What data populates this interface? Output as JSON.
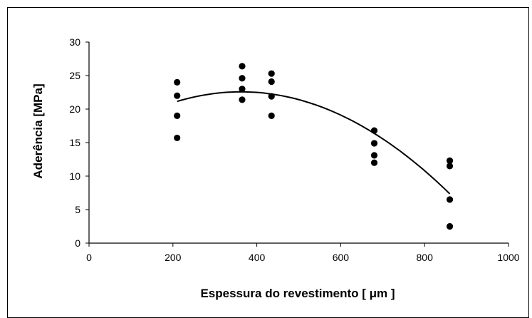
{
  "chart_data": {
    "type": "scatter",
    "title": "",
    "xlabel": "Espessura do revestimento  [ μm ]",
    "ylabel": "Aderência [MPa]",
    "xlim": [
      0,
      1000
    ],
    "ylim": [
      0,
      30
    ],
    "x_ticks": [
      0,
      200,
      400,
      600,
      800,
      1000
    ],
    "y_ticks": [
      0,
      5,
      10,
      15,
      20,
      25,
      30
    ],
    "x_tick_labels": [
      "0",
      "200",
      "400",
      "600",
      "800",
      "1000"
    ],
    "y_tick_labels": [
      "0",
      "5",
      "10",
      "15",
      "20",
      "25",
      "30"
    ],
    "grid": false,
    "legend": "none",
    "points": [
      {
        "x": 210,
        "y": 24.0
      },
      {
        "x": 210,
        "y": 22.0
      },
      {
        "x": 210,
        "y": 19.0
      },
      {
        "x": 210,
        "y": 15.7
      },
      {
        "x": 365,
        "y": 26.4
      },
      {
        "x": 365,
        "y": 24.6
      },
      {
        "x": 365,
        "y": 23.0
      },
      {
        "x": 365,
        "y": 21.4
      },
      {
        "x": 435,
        "y": 25.3
      },
      {
        "x": 435,
        "y": 24.1
      },
      {
        "x": 435,
        "y": 21.9
      },
      {
        "x": 435,
        "y": 19.0
      },
      {
        "x": 680,
        "y": 16.8
      },
      {
        "x": 680,
        "y": 14.9
      },
      {
        "x": 680,
        "y": 13.1
      },
      {
        "x": 680,
        "y": 12.0
      },
      {
        "x": 860,
        "y": 12.3
      },
      {
        "x": 860,
        "y": 11.5
      },
      {
        "x": 860,
        "y": 6.5
      },
      {
        "x": 860,
        "y": 2.5
      }
    ],
    "trendline": {
      "type": "polynomial-2",
      "points": [
        {
          "x": 210,
          "y": 21.2
        },
        {
          "x": 365,
          "y": 22.5
        },
        {
          "x": 435,
          "y": 22.2
        },
        {
          "x": 680,
          "y": 16.5
        },
        {
          "x": 860,
          "y": 7.3
        }
      ]
    },
    "colors": {
      "points": "#000000",
      "trendline": "#000000",
      "axes": "#000000"
    }
  }
}
